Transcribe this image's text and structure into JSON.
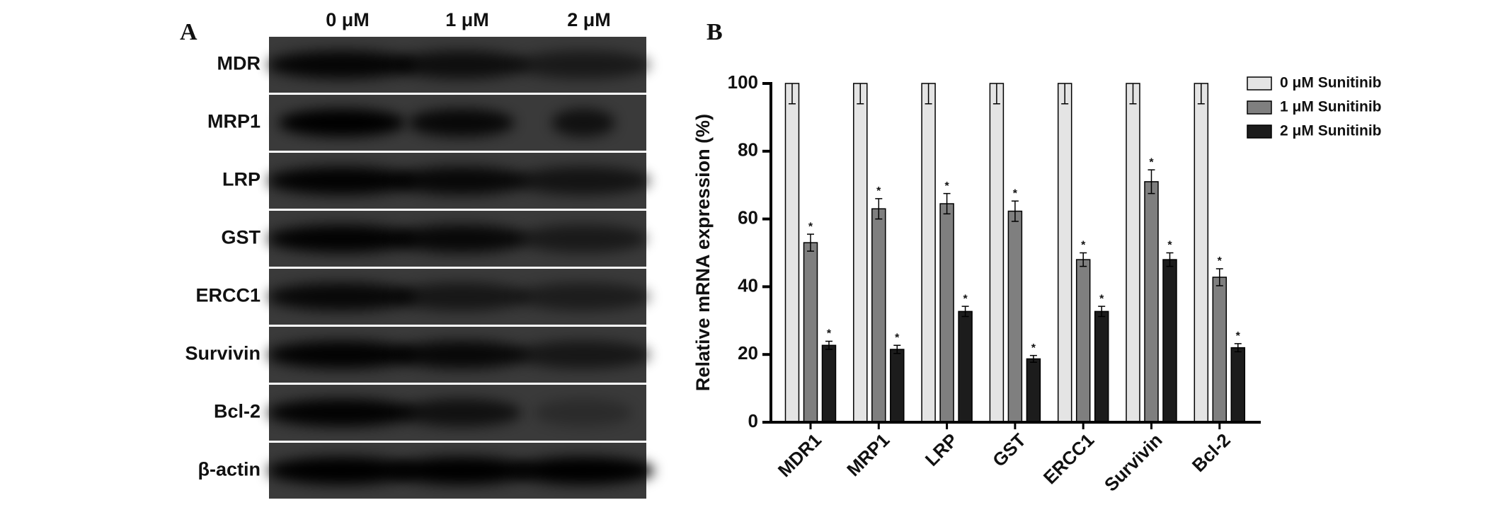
{
  "panel_a": {
    "label": "A",
    "columns": [
      "0 μM",
      "1 μM",
      "2 μM"
    ],
    "rows": [
      "MDR",
      "MRP1",
      "LRP",
      "GST",
      "ERCC1",
      "Survivin",
      "Bcl-2",
      "β-actin"
    ]
  },
  "chart_data": {
    "type": "bar",
    "panel_label": "B",
    "y_label": "Relative mRNA expression (%)",
    "categories": [
      "MDR1",
      "MRP1",
      "LRP",
      "GST",
      "ERCC1",
      "Survivin",
      "Bcl-2"
    ],
    "series": [
      {
        "name": "0 μM Sunitinib",
        "color": "#e4e4e4",
        "values": [
          100,
          100,
          100,
          100,
          100,
          100,
          100
        ],
        "errors": [
          6,
          6,
          6,
          6,
          6,
          6,
          6
        ]
      },
      {
        "name": "1 μM Sunitinib",
        "color": "#7f7f7f",
        "values": [
          53,
          63,
          64.5,
          62.3,
          48,
          71,
          42.8
        ],
        "errors": [
          2.5,
          3,
          3,
          3,
          2,
          3.5,
          2.5
        ],
        "markers": [
          "*",
          "*",
          "*",
          "*",
          "*",
          "*",
          "*"
        ]
      },
      {
        "name": "2 μM Sunitinib",
        "color": "#1c1c1c",
        "values": [
          22.7,
          21.5,
          32.7,
          18.7,
          32.7,
          48,
          22
        ],
        "errors": [
          1.2,
          1.2,
          1.5,
          1,
          1.5,
          2,
          1.2
        ],
        "markers": [
          "*",
          "*",
          "*",
          "*",
          "*",
          "*",
          "*"
        ]
      }
    ],
    "ylim": [
      0,
      100
    ],
    "yticks": [
      0,
      20,
      40,
      60,
      80,
      100
    ],
    "legend": "top-right"
  }
}
